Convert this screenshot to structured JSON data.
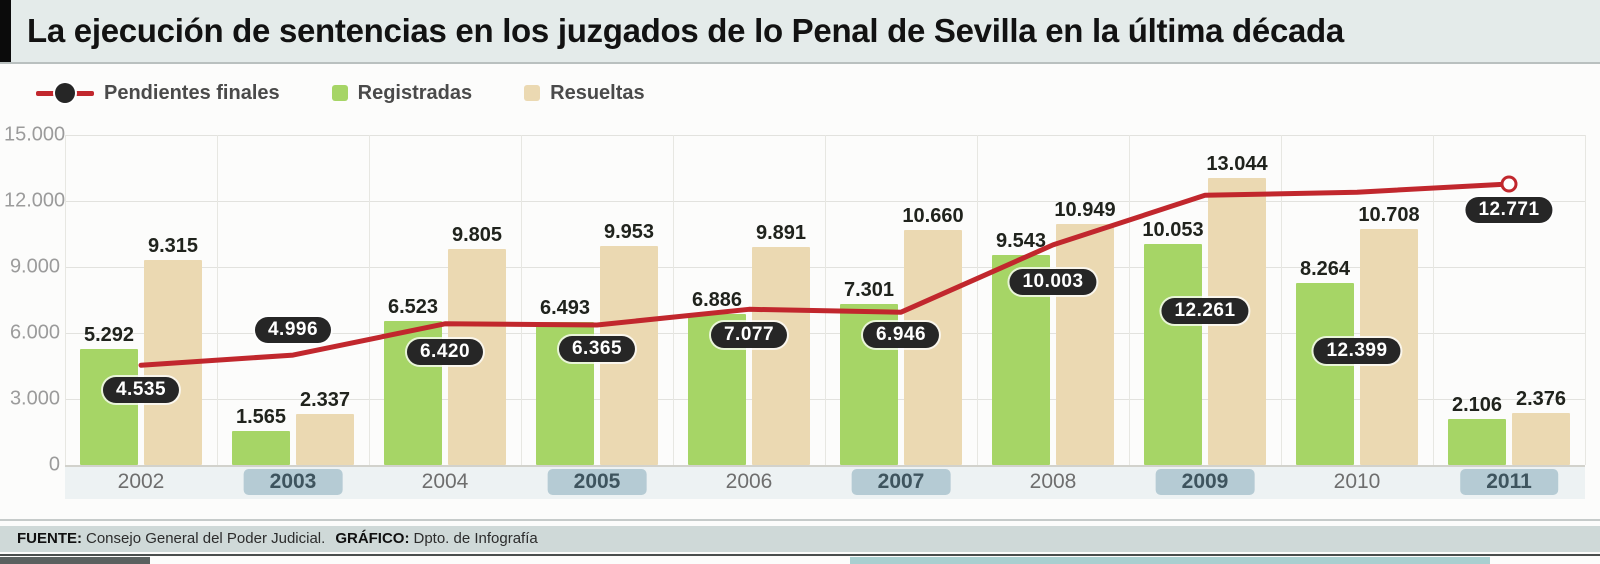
{
  "title": "La ejecución de sentencias en los juzgados de lo Penal de Sevilla en la última década",
  "legend": {
    "items": [
      {
        "label": "Pendientes finales",
        "marker": "line-with-dot",
        "color": "#c1272d"
      },
      {
        "label": "Registradas",
        "marker": "square",
        "color": "#a6d566"
      },
      {
        "label": "Resueltas",
        "marker": "square",
        "color": "#ebd9b2"
      }
    ]
  },
  "y_axis": {
    "ticks": [
      {
        "label": "15.000",
        "value": 15000
      },
      {
        "label": "12.000",
        "value": 12000
      },
      {
        "label": "9.000",
        "value": 9000
      },
      {
        "label": "6.000",
        "value": 6000
      },
      {
        "label": "3.000",
        "value": 3000
      },
      {
        "label": "0",
        "value": 0
      }
    ]
  },
  "chart_data": {
    "type": "bar+line",
    "title": "La ejecución de sentencias en los juzgados de lo Penal de Sevilla en la última década",
    "categories": [
      "2002",
      "2003",
      "2004",
      "2005",
      "2006",
      "2007",
      "2008",
      "2009",
      "2010",
      "2011"
    ],
    "series": [
      {
        "name": "Registradas",
        "type": "bar",
        "color": "#a6d566",
        "values": [
          5292,
          1565,
          6523,
          6493,
          6886,
          7301,
          9543,
          10053,
          8264,
          2106
        ]
      },
      {
        "name": "Resueltas",
        "type": "bar",
        "color": "#ebd9b2",
        "values": [
          9315,
          2337,
          9805,
          9953,
          9891,
          10660,
          10949,
          13044,
          10708,
          2376
        ]
      },
      {
        "name": "Pendientes finales",
        "type": "line",
        "color": "#c1272d",
        "values": [
          4535,
          4996,
          6420,
          6365,
          7077,
          6946,
          10003,
          12261,
          12399,
          12771
        ]
      }
    ],
    "ylim": [
      0,
      15000
    ],
    "grid": true,
    "legend_position": "top-left",
    "highlighted_categories": [
      "2003",
      "2005",
      "2007",
      "2009",
      "2011"
    ],
    "line_end_marker": "open-circle",
    "value_label_style": {
      "bars": "plain-bold",
      "line": "dark-pill-white-text"
    }
  },
  "footer": {
    "source_label": "FUENTE:",
    "source": "Consejo General del Poder Judicial.",
    "graphic_label": "GRÁFICO:",
    "graphic": "Dpto. de Infografía"
  }
}
